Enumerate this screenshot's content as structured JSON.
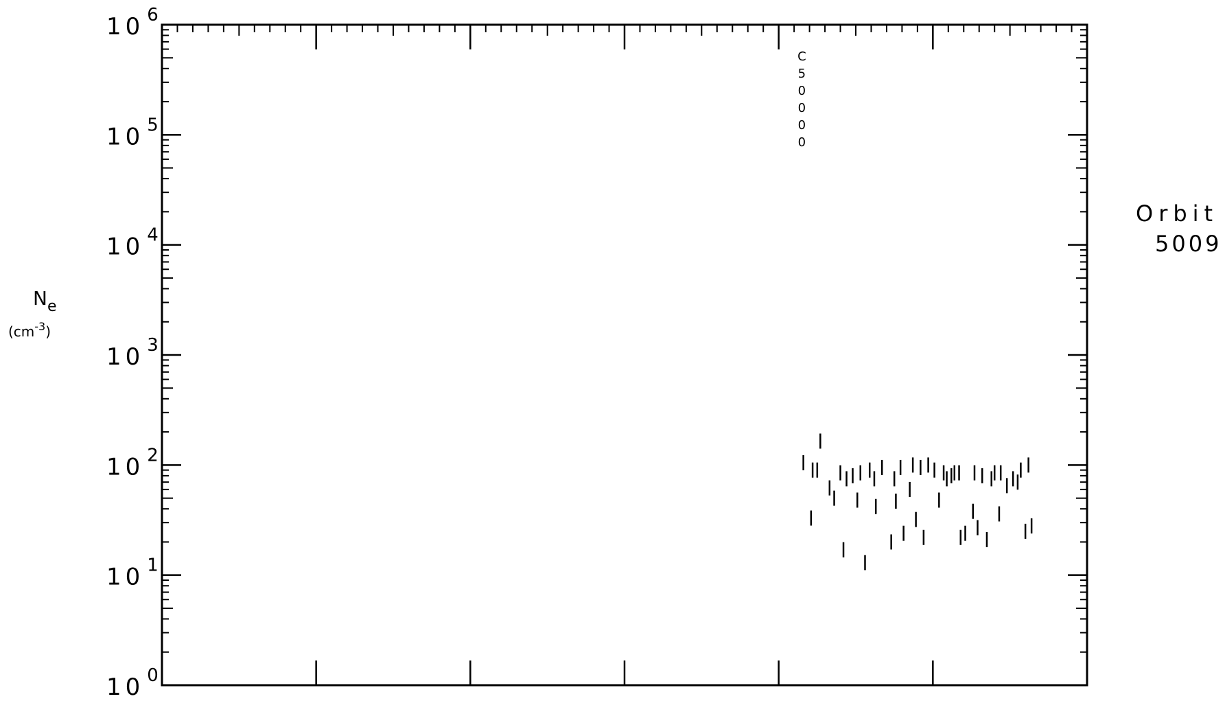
{
  "chart_data": {
    "type": "scatter",
    "marker": "vertical-tick",
    "y_scale": "log",
    "ylim": [
      1,
      1000000
    ],
    "y_ticks": [
      {
        "value": 1,
        "base": "10",
        "exp": "0"
      },
      {
        "value": 10,
        "base": "10",
        "exp": "1"
      },
      {
        "value": 100,
        "base": "10",
        "exp": "2"
      },
      {
        "value": 1000,
        "base": "10",
        "exp": "3"
      },
      {
        "value": 10000,
        "base": "10",
        "exp": "4"
      },
      {
        "value": 100000,
        "base": "10",
        "exp": "5"
      },
      {
        "value": 1000000,
        "base": "10",
        "exp": "6"
      }
    ],
    "ylabel_main": "N",
    "ylabel_sub": "e",
    "ylabel_unit_pre": "(cm",
    "ylabel_unit_exp": "-3",
    "ylabel_unit_post": ")",
    "xlim": [
      0,
      6
    ],
    "x_major_ticks": [
      1,
      2,
      3,
      4,
      5
    ],
    "x_tick_labels": [],
    "annotation": [
      "C",
      "5",
      "0",
      "0",
      "0",
      "0"
    ],
    "annotation_x": 4.15,
    "orbit_label": "Orbit",
    "orbit_number": "5009",
    "grid": false,
    "series": [
      {
        "points": [
          {
            "x": 4.16,
            "y": 105
          },
          {
            "x": 4.22,
            "y": 90
          },
          {
            "x": 4.27,
            "y": 165
          },
          {
            "x": 4.25,
            "y": 90
          },
          {
            "x": 4.21,
            "y": 33
          },
          {
            "x": 4.33,
            "y": 62
          },
          {
            "x": 4.36,
            "y": 50
          },
          {
            "x": 4.4,
            "y": 85
          },
          {
            "x": 4.44,
            "y": 75
          },
          {
            "x": 4.42,
            "y": 17
          },
          {
            "x": 4.48,
            "y": 80
          },
          {
            "x": 4.51,
            "y": 48
          },
          {
            "x": 4.53,
            "y": 85
          },
          {
            "x": 4.56,
            "y": 13
          },
          {
            "x": 4.59,
            "y": 90
          },
          {
            "x": 4.62,
            "y": 75
          },
          {
            "x": 4.63,
            "y": 42
          },
          {
            "x": 4.67,
            "y": 95
          },
          {
            "x": 4.73,
            "y": 20
          },
          {
            "x": 4.75,
            "y": 75
          },
          {
            "x": 4.76,
            "y": 47
          },
          {
            "x": 4.79,
            "y": 95
          },
          {
            "x": 4.81,
            "y": 24
          },
          {
            "x": 4.85,
            "y": 60
          },
          {
            "x": 4.87,
            "y": 100
          },
          {
            "x": 4.89,
            "y": 32
          },
          {
            "x": 4.92,
            "y": 95
          },
          {
            "x": 4.94,
            "y": 22
          },
          {
            "x": 4.97,
            "y": 100
          },
          {
            "x": 5.01,
            "y": 90
          },
          {
            "x": 5.04,
            "y": 48
          },
          {
            "x": 5.07,
            "y": 85
          },
          {
            "x": 5.09,
            "y": 75
          },
          {
            "x": 5.12,
            "y": 80
          },
          {
            "x": 5.14,
            "y": 85
          },
          {
            "x": 5.17,
            "y": 85
          },
          {
            "x": 5.18,
            "y": 22
          },
          {
            "x": 5.21,
            "y": 24
          },
          {
            "x": 5.26,
            "y": 38
          },
          {
            "x": 5.27,
            "y": 85
          },
          {
            "x": 5.29,
            "y": 27
          },
          {
            "x": 5.32,
            "y": 80
          },
          {
            "x": 5.35,
            "y": 21
          },
          {
            "x": 5.38,
            "y": 75
          },
          {
            "x": 5.4,
            "y": 85
          },
          {
            "x": 5.43,
            "y": 36
          },
          {
            "x": 5.44,
            "y": 85
          },
          {
            "x": 5.48,
            "y": 65
          },
          {
            "x": 5.52,
            "y": 75
          },
          {
            "x": 5.55,
            "y": 70
          },
          {
            "x": 5.57,
            "y": 90
          },
          {
            "x": 5.6,
            "y": 25
          },
          {
            "x": 5.62,
            "y": 100
          },
          {
            "x": 5.64,
            "y": 28
          }
        ]
      }
    ]
  }
}
